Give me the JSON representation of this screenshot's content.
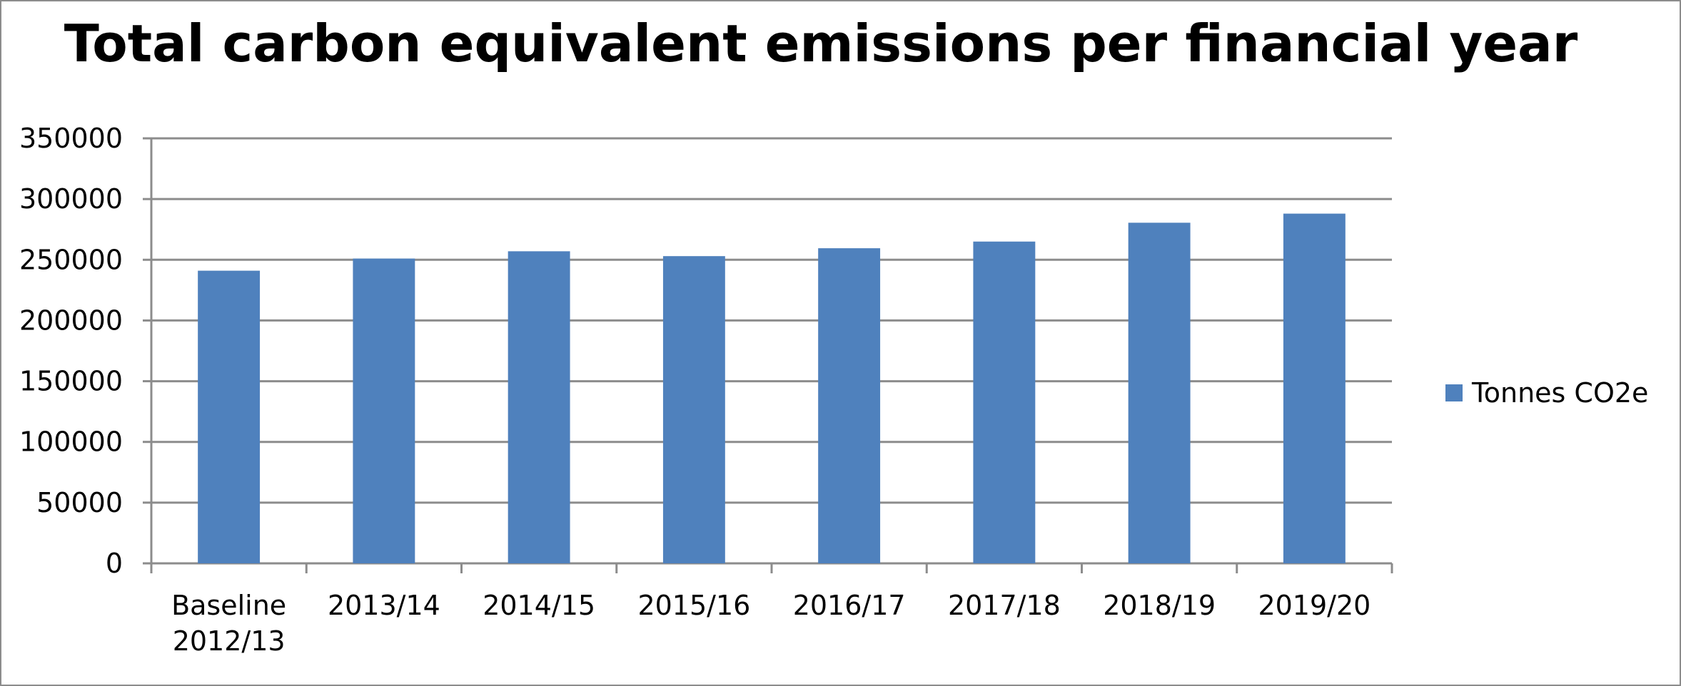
{
  "chart_data": {
    "type": "bar",
    "title": "Total carbon equivalent emissions per financial year",
    "xlabel": "",
    "ylabel": "",
    "categories": [
      [
        "Baseline",
        "2012/13"
      ],
      [
        "2013/14"
      ],
      [
        "2014/15"
      ],
      [
        "2015/16"
      ],
      [
        "2016/17"
      ],
      [
        "2017/18"
      ],
      [
        "2018/19"
      ],
      [
        "2019/20"
      ]
    ],
    "series": [
      {
        "name": "Tonnes CO2e",
        "color": "#4f81bd",
        "values": [
          241000,
          251000,
          257000,
          253000,
          259500,
          265000,
          280500,
          288000
        ]
      }
    ],
    "ylim": [
      0,
      350000
    ],
    "yticks": [
      "0",
      "50000",
      "100000",
      "150000",
      "200000",
      "250000",
      "300000",
      "350000"
    ],
    "grid": true,
    "legend_position": "right",
    "colors": {
      "gridline": "#8c8c8c",
      "axis": "#8c8c8c",
      "frame": "#8c8c8c"
    }
  }
}
